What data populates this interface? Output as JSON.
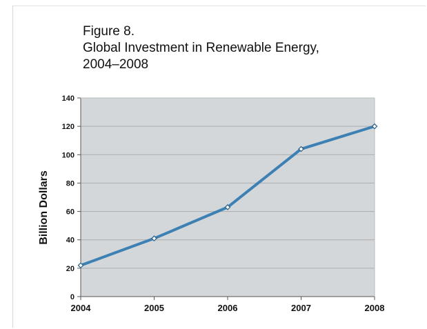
{
  "figure_label": "Figure 8.",
  "chart_data": {
    "type": "line",
    "title": "Global Investment in Renewable Energy, 2004–2008",
    "title_lines": [
      "Global Investment in Renewable Energy,",
      "2004–2008"
    ],
    "xlabel": "",
    "ylabel": "Billion Dollars",
    "x": [
      "2004",
      "2005",
      "2006",
      "2007",
      "2008"
    ],
    "series": [
      {
        "values": [
          22,
          41,
          63,
          104,
          120
        ]
      }
    ],
    "ylim": [
      0,
      140
    ],
    "yticks": [
      0,
      20,
      40,
      60,
      80,
      100,
      120,
      140
    ],
    "grid": true,
    "colors": {
      "line": "#3c80b4",
      "plot_background": "#d4d7d9",
      "gridline": "#a9acae",
      "axis": "#555555"
    }
  }
}
